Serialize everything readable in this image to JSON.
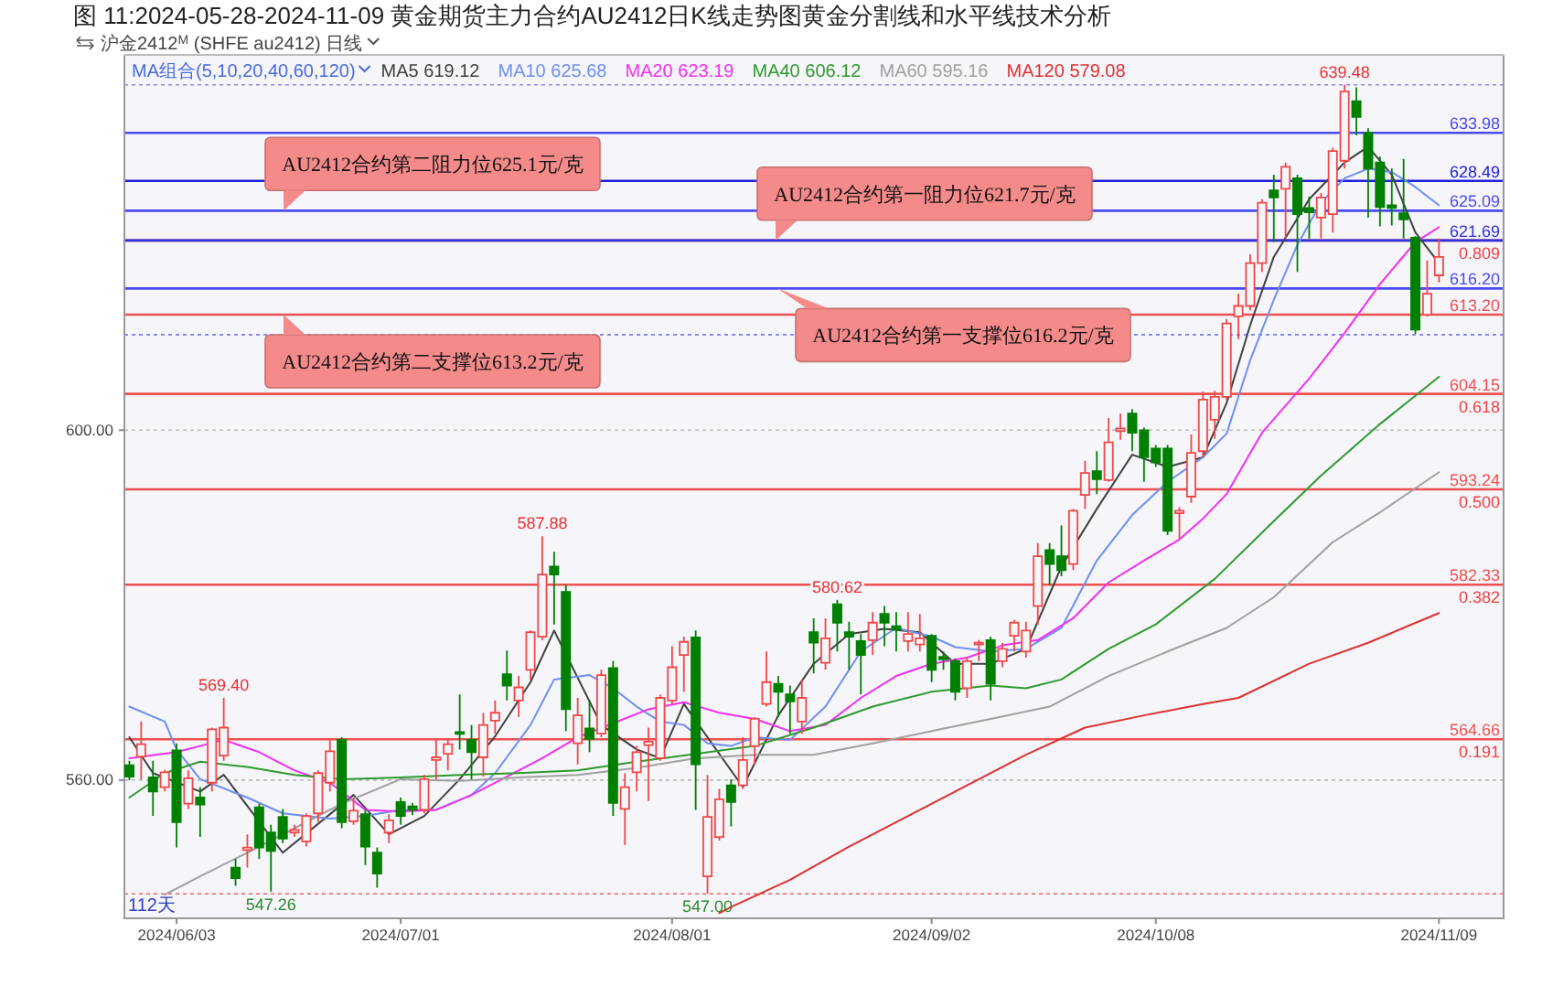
{
  "chart_data": {
    "type": "candlestick",
    "title": "图 11:2024-05-28-2024-11-09 黄金期货主力合约AU2412日K线走势图黄金分割线和水平线技术分析",
    "subtitle": "沪金2412$^{M}$ (SHFE au2412)   日线",
    "legend_title": "MA组合(5,10,20,40,60,120)",
    "legend": "top",
    "grid": "y",
    "categories": [
      null,
      null,
      null,
      null,
      "2024/06/03",
      null,
      null,
      null,
      null,
      null,
      null,
      null,
      null,
      null,
      null,
      null,
      null,
      null,
      null,
      null,
      null,
      null,
      null,
      "2024/07/01",
      null,
      null,
      null,
      null,
      null,
      null,
      null,
      null,
      null,
      null,
      null,
      null,
      null,
      null,
      null,
      null,
      null,
      null,
      null,
      null,
      null,
      null,
      "2024/08/01",
      null,
      null,
      null,
      null,
      null,
      null,
      null,
      null,
      null,
      null,
      null,
      null,
      null,
      null,
      null,
      null,
      null,
      null,
      null,
      null,
      null,
      "2024/09/02",
      null,
      null,
      null,
      null,
      null,
      null,
      null,
      null,
      null,
      null,
      null,
      null,
      null,
      null,
      null,
      null,
      null,
      null,
      "2024/10/08",
      null,
      null,
      null,
      null,
      null,
      null,
      null,
      null,
      null,
      null,
      null,
      null,
      null,
      null,
      null,
      null,
      null,
      null,
      null,
      null,
      null,
      null,
      null,
      "2024/11/09"
    ],
    "ylim": [
      544.2,
      642.9
    ],
    "yticks": [
      {
        "value": 600,
        "label": "600.00"
      },
      {
        "value": 560,
        "label": "560.00"
      }
    ],
    "series": [
      {
        "type": "candlestick",
        "ohlc": [
          [
            561.7,
            562.2,
            560.0,
            560.4
          ],
          [
            562.7,
            566.7,
            560.1,
            564.1
          ],
          [
            560.3,
            562.2,
            555.9,
            558.7
          ],
          [
            559.2,
            561.2,
            558.7,
            560.9
          ],
          [
            563.4,
            564.2,
            552.3,
            555.2
          ],
          [
            557.3,
            561.1,
            556.7,
            560.2
          ],
          [
            558.0,
            559.2,
            553.5,
            557.2
          ],
          [
            559.7,
            566.0,
            558.7,
            565.8
          ],
          [
            562.8,
            569.4,
            562.2,
            566.0
          ],
          [
            550.0,
            551.0,
            547.9,
            548.8
          ],
          [
            552.0,
            553.8,
            550.0,
            552.3
          ],
          [
            556.9,
            557.3,
            551.0,
            552.3
          ],
          [
            554.0,
            554.9,
            547.26,
            551.9
          ],
          [
            555.8,
            556.7,
            552.8,
            553.3
          ],
          [
            554.0,
            554.9,
            553.5,
            554.3
          ],
          [
            553.0,
            556.2,
            552.4,
            555.9
          ],
          [
            556.2,
            561.1,
            555.2,
            560.8
          ],
          [
            559.7,
            564.6,
            558.7,
            563.3
          ],
          [
            564.6,
            564.9,
            554.5,
            555.2
          ],
          [
            555.3,
            558.0,
            554.9,
            556.5
          ],
          [
            556.1,
            556.6,
            550.3,
            552.4
          ],
          [
            551.7,
            552.3,
            547.7,
            549.3
          ],
          [
            554.0,
            556.1,
            552.8,
            555.4
          ],
          [
            557.5,
            558.0,
            554.9,
            555.9
          ],
          [
            557.0,
            557.4,
            556.0,
            556.6
          ],
          [
            556.6,
            560.6,
            556.2,
            560.1
          ],
          [
            562.3,
            564.6,
            560.1,
            562.6
          ],
          [
            563.0,
            564.6,
            561.1,
            564.1
          ],
          [
            565.5,
            569.8,
            563.5,
            565.3
          ],
          [
            564.6,
            566.3,
            560.1,
            563.2
          ],
          [
            562.6,
            567.7,
            560.4,
            566.3
          ],
          [
            566.8,
            569.1,
            565.3,
            567.7
          ],
          [
            572.1,
            574.8,
            569.1,
            570.8
          ],
          [
            569.1,
            571.9,
            567.2,
            570.6
          ],
          [
            572.6,
            577.1,
            571.5,
            576.9
          ],
          [
            576.4,
            587.88,
            576.0,
            583.5
          ],
          [
            584.4,
            586.1,
            577.8,
            583.5
          ],
          [
            581.5,
            582.3,
            565.6,
            568.1
          ],
          [
            564.2,
            569.4,
            561.8,
            567.4
          ],
          [
            565.9,
            569.1,
            563.2,
            564.7
          ],
          [
            565.3,
            572.6,
            564.9,
            572.0
          ],
          [
            572.8,
            573.6,
            555.9,
            557.4
          ],
          [
            556.7,
            560.8,
            552.6,
            559.2
          ],
          [
            560.9,
            563.9,
            558.7,
            563.2
          ],
          [
            564.0,
            566.0,
            557.6,
            564.4
          ],
          [
            562.5,
            569.8,
            562.2,
            569.4
          ],
          [
            569.1,
            575.3,
            568.7,
            572.9
          ],
          [
            574.3,
            576.4,
            570.1,
            575.8
          ],
          [
            576.3,
            577.1,
            556.6,
            561.8
          ],
          [
            549.0,
            560.6,
            547.0,
            555.8
          ],
          [
            553.5,
            559.0,
            553.1,
            557.8
          ],
          [
            559.4,
            560.1,
            554.7,
            557.5
          ],
          [
            559.4,
            564.9,
            559.0,
            562.3
          ],
          [
            563.9,
            567.2,
            561.8,
            567.0
          ],
          [
            568.7,
            574.7,
            568.4,
            571.2
          ],
          [
            571.0,
            571.9,
            567.2,
            570.1
          ],
          [
            569.8,
            570.8,
            565.3,
            569.0
          ],
          [
            566.7,
            571.5,
            565.3,
            569.4
          ],
          [
            576.9,
            578.5,
            572.2,
            575.7
          ],
          [
            573.4,
            578.5,
            572.6,
            576.2
          ],
          [
            580.1,
            580.62,
            574.7,
            578.0
          ],
          [
            576.9,
            578.1,
            572.6,
            576.4
          ],
          [
            575.9,
            576.7,
            569.8,
            574.3
          ],
          [
            576.0,
            579.2,
            574.3,
            578.0
          ],
          [
            579.0,
            579.9,
            575.3,
            578.0
          ],
          [
            577.6,
            579.2,
            574.7,
            577.2
          ],
          [
            575.9,
            579.2,
            574.7,
            576.7
          ],
          [
            575.5,
            579.0,
            574.7,
            576.2
          ],
          [
            576.5,
            576.7,
            571.2,
            572.6
          ],
          [
            574.1,
            574.7,
            572.6,
            573.8
          ],
          [
            573.6,
            573.9,
            569.1,
            570.1
          ],
          [
            570.5,
            574.1,
            569.4,
            573.6
          ],
          [
            575.5,
            576.0,
            573.6,
            575.7
          ],
          [
            576.0,
            576.4,
            569.1,
            571.0
          ],
          [
            573.6,
            575.7,
            572.9,
            575.0
          ],
          [
            576.5,
            578.3,
            574.7,
            578.0
          ],
          [
            574.7,
            578.1,
            574.0,
            577.1
          ],
          [
            579.9,
            587.1,
            577.8,
            585.6
          ],
          [
            586.3,
            587.1,
            582.3,
            584.7
          ],
          [
            585.6,
            589.1,
            583.3,
            584.0
          ],
          [
            584.7,
            591.0,
            584.0,
            590.8
          ],
          [
            592.6,
            596.5,
            591.0,
            595.1
          ],
          [
            595.3,
            597.6,
            592.7,
            594.4
          ],
          [
            594.3,
            601.4,
            594.1,
            598.6
          ],
          [
            599.9,
            601.9,
            598.9,
            600.2
          ],
          [
            601.9,
            602.4,
            597.6,
            599.7
          ],
          [
            600.0,
            600.3,
            594.1,
            596.9
          ],
          [
            597.9,
            598.3,
            595.8,
            596.3
          ],
          [
            597.9,
            598.3,
            588.0,
            588.5
          ],
          [
            590.5,
            591.2,
            587.5,
            590.8
          ],
          [
            592.4,
            599.5,
            591.7,
            597.4
          ],
          [
            597.6,
            604.4,
            596.9,
            603.5
          ],
          [
            601.2,
            604.5,
            599.0,
            603.8
          ],
          [
            603.8,
            612.7,
            603.5,
            612.2
          ],
          [
            613.0,
            615.6,
            610.4,
            614.2
          ],
          [
            614.2,
            620.1,
            613.7,
            619.1
          ],
          [
            619.1,
            626.4,
            618.1,
            626.0
          ],
          [
            627.4,
            629.2,
            621.5,
            626.6
          ],
          [
            627.6,
            630.6,
            621.9,
            630.1
          ],
          [
            628.8,
            629.2,
            618.1,
            624.7
          ],
          [
            625.4,
            626.7,
            621.9,
            624.9
          ],
          [
            624.3,
            627.1,
            621.9,
            626.6
          ],
          [
            624.7,
            632.3,
            622.6,
            631.9
          ],
          [
            630.8,
            639.48,
            629.9,
            638.7
          ],
          [
            637.6,
            639.2,
            633.7,
            635.8
          ],
          [
            634.0,
            634.5,
            624.3,
            629.9
          ],
          [
            630.6,
            631.3,
            623.3,
            625.5
          ],
          [
            625.7,
            629.9,
            623.4,
            625.4
          ],
          [
            624.8,
            631.0,
            621.9,
            624.1
          ],
          [
            622.0,
            622.2,
            611.0,
            611.5
          ],
          [
            613.2,
            619.4,
            613.0,
            615.6
          ],
          [
            617.7,
            621.9,
            616.9,
            619.8
          ]
        ],
        "colors": [
          "#008000",
          "#f04848",
          "#008000",
          "#f04848",
          "#008000",
          "#f04848",
          "#008000",
          "#f04848",
          "#f04848",
          "#008000",
          "#f04848",
          "#008000",
          "#008000",
          "#008000",
          "#f04848",
          "#f04848",
          "#f04848",
          "#f04848",
          "#008000",
          "#f04848",
          "#008000",
          "#008000",
          "#f04848",
          "#008000",
          "#008000",
          "#f04848",
          "#f04848",
          "#f04848",
          "#008000",
          "#008000",
          "#f04848",
          "#f04848",
          "#008000",
          "#f04848",
          "#f04848",
          "#f04848",
          "#008000",
          "#008000",
          "#f04848",
          "#008000",
          "#f04848",
          "#008000",
          "#f04848",
          "#f04848",
          "#f04848",
          "#f04848",
          "#f04848",
          "#f04848",
          "#008000",
          "#f04848",
          "#f04848",
          "#008000",
          "#f04848",
          "#f04848",
          "#f04848",
          "#008000",
          "#008000",
          "#f04848",
          "#008000",
          "#f04848",
          "#008000",
          "#008000",
          "#008000",
          "#f04848",
          "#008000",
          "#008000",
          "#f04848",
          "#f04848",
          "#008000",
          "#008000",
          "#008000",
          "#f04848",
          "#f04848",
          "#008000",
          "#f04848",
          "#f04848",
          "#f04848",
          "#f04848",
          "#008000",
          "#008000",
          "#f04848",
          "#f04848",
          "#008000",
          "#f04848",
          "#f04848",
          "#008000",
          "#008000",
          "#008000",
          "#008000",
          "#f04848",
          "#f04848",
          "#f04848",
          "#f04848",
          "#f04848",
          "#f04848",
          "#f04848",
          "#f04848",
          "#008000",
          "#f04848",
          "#008000",
          "#008000",
          "#f04848",
          "#f04848",
          "#f04848",
          "#008000",
          "#008000",
          "#008000",
          "#008000",
          "#008000",
          "#008000",
          "#f04848",
          "#f04848"
        ]
      },
      {
        "type": "line",
        "name": "MA5 619.12",
        "color": "#404040",
        "values": [
          564.9,
          null,
          560.8,
          null,
          null,
          null,
          558.7,
          null,
          560.6,
          null,
          null,
          null,
          null,
          551.7,
          null,
          null,
          null,
          null,
          null,
          558.3,
          null,
          null,
          553.8,
          null,
          null,
          555.9,
          null,
          null,
          560.1,
          null,
          null,
          565.0,
          null,
          null,
          571.2,
          null,
          577.1,
          null,
          null,
          null,
          566.3,
          null,
          null,
          563.5,
          null,
          562.5,
          null,
          568.7,
          null,
          null,
          null,
          null,
          559.2,
          null,
          null,
          567.4,
          null,
          null,
          573.3,
          null,
          null,
          576.7,
          null,
          null,
          577.3,
          null,
          null,
          576.9,
          null,
          null,
          573.3,
          null,
          null,
          573.3,
          null,
          null,
          575.0,
          null,
          null,
          584.4,
          null,
          null,
          591.0,
          null,
          null,
          597.2,
          null,
          null,
          595.8,
          null,
          null,
          596.9,
          null,
          603.1,
          null,
          612.0,
          null,
          619.8,
          null,
          null,
          626.4,
          null,
          null,
          630.6,
          null,
          632.4,
          null,
          629.2,
          null,
          622.6,
          null,
          619.1
        ]
      },
      {
        "type": "line",
        "name": "MA10 625.68",
        "color": "#6f8ff0",
        "values": [
          568.4,
          null,
          null,
          566.7,
          563.5,
          null,
          560.1,
          null,
          null,
          null,
          558.0,
          null,
          null,
          556.2,
          null,
          null,
          null,
          555.6,
          null,
          null,
          555.9,
          null,
          null,
          556.6,
          null,
          null,
          556.6,
          null,
          null,
          558.3,
          null,
          560.8,
          null,
          null,
          566.3,
          null,
          571.5,
          null,
          null,
          572.0,
          null,
          570.5,
          null,
          568.4,
          null,
          566.7,
          null,
          566.3,
          null,
          564.2,
          null,
          563.9,
          null,
          564.9,
          null,
          null,
          564.6,
          null,
          null,
          568.4,
          null,
          null,
          574.7,
          null,
          null,
          577.4,
          null,
          null,
          576.4,
          null,
          575.2,
          null,
          null,
          574.7,
          null,
          null,
          575.0,
          null,
          null,
          577.4,
          null,
          null,
          585.1,
          null,
          null,
          590.3,
          null,
          null,
          594.1,
          null,
          null,
          596.9,
          null,
          599.6,
          null,
          608.0,
          null,
          614.9,
          null,
          621.2,
          null,
          626.0,
          null,
          628.8,
          null,
          629.9,
          null,
          629.5,
          null,
          627.8,
          null,
          625.7
        ]
      },
      {
        "type": "line",
        "name": "MA20 623.19",
        "color": "#f030f0",
        "values": [
          562.5,
          null,
          null,
          null,
          563.2,
          null,
          null,
          null,
          564.6,
          null,
          null,
          563.2,
          null,
          null,
          561.1,
          null,
          null,
          559.7,
          null,
          null,
          556.6,
          null,
          null,
          556.4,
          null,
          null,
          556.6,
          null,
          null,
          558.3,
          null,
          null,
          560.4,
          null,
          null,
          562.5,
          null,
          null,
          564.9,
          null,
          null,
          566.5,
          null,
          null,
          568.1,
          null,
          null,
          568.9,
          null,
          null,
          567.7,
          null,
          null,
          567.0,
          null,
          null,
          565.6,
          null,
          null,
          566.3,
          null,
          null,
          569.4,
          null,
          null,
          571.9,
          null,
          null,
          573.3,
          null,
          null,
          574.0,
          null,
          null,
          575.4,
          null,
          null,
          576.0,
          null,
          null,
          578.5,
          null,
          null,
          582.6,
          null,
          null,
          585.1,
          null,
          null,
          587.5,
          null,
          589.9,
          null,
          592.7,
          null,
          null,
          599.7,
          null,
          null,
          null,
          605.9,
          null,
          null,
          611.1,
          null,
          null,
          616.7,
          null,
          null,
          621.5,
          null,
          623.2
        ]
      },
      {
        "type": "line",
        "name": "MA40 606.12",
        "color": "#2e9a2e",
        "values": [
          558.0,
          null,
          null,
          560.8,
          null,
          null,
          562.1,
          null,
          null,
          null,
          561.5,
          null,
          null,
          null,
          560.6,
          null,
          null,
          null,
          560.1,
          null,
          null,
          null,
          null,
          560.3,
          null,
          null,
          null,
          null,
          560.6,
          null,
          null,
          null,
          null,
          560.8,
          null,
          null,
          null,
          null,
          561.1,
          null,
          null,
          null,
          null,
          562.1,
          null,
          null,
          null,
          null,
          563.0,
          null,
          null,
          null,
          null,
          563.9,
          null,
          null,
          null,
          null,
          566.0,
          null,
          null,
          null,
          null,
          568.4,
          null,
          null,
          null,
          null,
          570.1,
          null,
          null,
          null,
          null,
          570.8,
          null,
          null,
          570.5,
          null,
          null,
          571.5,
          null,
          null,
          null,
          575.0,
          null,
          null,
          null,
          577.8,
          null,
          null,
          null,
          null,
          583.0,
          null,
          null,
          null,
          null,
          589.6,
          null,
          null,
          null,
          594.8,
          null,
          null,
          null,
          null,
          600.7,
          null,
          null,
          null,
          null,
          606.1
        ]
      },
      {
        "type": "line",
        "name": "MA60 595.16",
        "color": "#a0a0a0",
        "values": [
          null,
          null,
          null,
          546.9,
          null,
          null,
          549.0,
          null,
          null,
          null,
          551.7,
          null,
          null,
          null,
          554.5,
          null,
          null,
          null,
          557.3,
          null,
          null,
          null,
          null,
          560.1,
          null,
          null,
          null,
          null,
          559.9,
          null,
          null,
          null,
          null,
          560.3,
          null,
          null,
          null,
          null,
          560.6,
          null,
          null,
          null,
          null,
          561.4,
          null,
          null,
          null,
          null,
          562.5,
          null,
          null,
          null,
          null,
          562.9,
          null,
          null,
          null,
          null,
          562.9,
          null,
          null,
          null,
          null,
          564.2,
          null,
          null,
          null,
          null,
          565.6,
          null,
          null,
          null,
          null,
          567.0,
          null,
          null,
          null,
          null,
          568.4,
          null,
          null,
          null,
          null,
          571.9,
          null,
          null,
          null,
          null,
          574.7,
          null,
          null,
          null,
          null,
          577.4,
          null,
          null,
          null,
          580.9,
          null,
          null,
          null,
          null,
          587.2,
          null,
          null,
          null,
          590.6,
          null,
          null,
          null,
          null,
          595.2
        ]
      },
      {
        "type": "line",
        "name": "MA120 579.08",
        "color": "#e03030",
        "values": [
          null,
          null,
          null,
          null,
          null,
          null,
          null,
          null,
          null,
          null,
          null,
          null,
          null,
          null,
          null,
          null,
          null,
          null,
          null,
          null,
          null,
          null,
          null,
          null,
          null,
          null,
          null,
          null,
          null,
          null,
          null,
          null,
          null,
          null,
          null,
          null,
          null,
          null,
          null,
          null,
          null,
          null,
          null,
          null,
          null,
          null,
          null,
          null,
          null,
          null,
          544.8,
          545.5,
          null,
          null,
          null,
          null,
          548.6,
          null,
          null,
          null,
          null,
          552.4,
          null,
          null,
          null,
          null,
          555.9,
          null,
          null,
          null,
          null,
          559.4,
          null,
          null,
          null,
          null,
          562.9,
          null,
          null,
          null,
          null,
          566.0,
          null,
          null,
          null,
          null,
          567.4,
          null,
          null,
          null,
          null,
          568.7,
          null,
          null,
          569.4,
          null,
          null,
          null,
          null,
          null,
          573.3,
          null,
          null,
          null,
          null,
          575.7,
          null,
          null,
          null,
          null,
          null,
          579.1
        ]
      }
    ],
    "ref_lines": [
      {
        "axis": "y",
        "value": 621.69,
        "color": "#f05050"
      },
      {
        "axis": "y",
        "value": 613.2,
        "label": "613.20",
        "color": "#f05050"
      },
      {
        "axis": "y",
        "value": 604.15,
        "label": "604.15",
        "color": "#f05050"
      },
      {
        "axis": "y",
        "value": 593.24,
        "label": "593.24",
        "color": "#f05050"
      },
      {
        "axis": "y",
        "value": 582.33,
        "label": "582.33",
        "color": "#f05050"
      },
      {
        "axis": "y",
        "value": 564.66,
        "label": "564.66",
        "color": "#f05050"
      },
      {
        "axis": "y",
        "value": 633.98,
        "label": "633.98",
        "color": "#4a4af0"
      },
      {
        "axis": "y",
        "value": 628.49,
        "label": "628.49",
        "color": "#2020e0"
      },
      {
        "axis": "y",
        "value": 625.09,
        "label": "625.09",
        "color": "#4a4af0"
      },
      {
        "axis": "y",
        "value": 621.69,
        "label": "621.69",
        "color": "#3030e0"
      },
      {
        "axis": "y",
        "value": 616.2,
        "label": "616.20",
        "color": "#4a4af0"
      },
      {
        "axis": "y",
        "value": 639.48,
        "color": "#8888ee",
        "line_style": "dotted"
      },
      {
        "axis": "y",
        "value": 610.9,
        "color": "#6666ee",
        "line_style": "dotted"
      },
      {
        "axis": "y",
        "value": 547.0,
        "color": "#f06060",
        "line_style": "dotted"
      }
    ],
    "annotations": [
      {
        "text": "639.48",
        "y": 639.48
      },
      {
        "text": "587.88",
        "y": 587.88
      },
      {
        "text": "569.40",
        "y": 569.4
      },
      {
        "text": "580.62",
        "y": 580.62
      },
      {
        "text": "547.26",
        "y": 547.26
      },
      {
        "text": "547.00",
        "y": 547.0
      },
      {
        "text": "AU2412合约第二阻力位625.1元/克",
        "y": 625.1
      },
      {
        "text": "AU2412合约第一阻力位621.7元/克",
        "y": 621.7
      },
      {
        "text": "AU2412合约第一支撑位616.2元/克",
        "y": 616.2
      },
      {
        "text": "AU2412合约第二支撑位613.2元/克",
        "y": 613.2
      },
      {
        "text": "0.809",
        "y": 621.69
      },
      {
        "text": "0.618",
        "y": 604.15
      },
      {
        "text": "0.500",
        "y": 593.24
      },
      {
        "text": "0.382",
        "y": 582.33
      },
      {
        "text": "0.191",
        "y": 564.66
      },
      "112天"
    ]
  }
}
